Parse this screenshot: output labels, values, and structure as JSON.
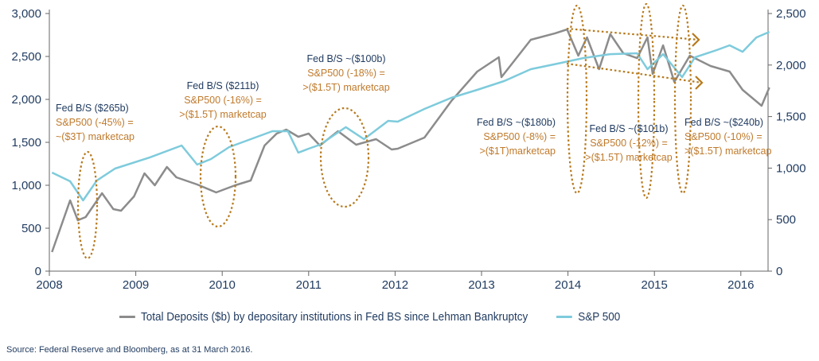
{
  "chart_data": {
    "type": "line",
    "title": "",
    "xlabel": "",
    "ylabel": "",
    "xlim": [
      2008,
      2016.35
    ],
    "x_ticks": [
      "2008",
      "2009",
      "2010",
      "2011",
      "2012",
      "2013",
      "2014",
      "2015",
      "2016"
    ],
    "ylim_left": [
      0,
      3000
    ],
    "y_ticks_left": [
      "0",
      "500",
      "1,000",
      "1,500",
      "2,000",
      "2,500",
      "3,000"
    ],
    "ylim_right": [
      0,
      2500
    ],
    "y_ticks_right": [
      "0",
      "500",
      "1,000",
      "1,500",
      "2,000",
      "2,500"
    ],
    "grid": false,
    "legend_position": "bottom",
    "series": [
      {
        "name": "Total Deposits ($b) by depositary institutions in Fed BS since Lehman Bankruptcy",
        "axis": "left",
        "color": "#8c8c8c",
        "x": [
          2008.03,
          2008.24,
          2008.33,
          2008.42,
          2008.61,
          2008.74,
          2008.83,
          2008.98,
          2009.1,
          2009.22,
          2009.36,
          2009.47,
          2009.71,
          2009.93,
          2010.15,
          2010.33,
          2010.49,
          2010.63,
          2010.74,
          2010.88,
          2011.0,
          2011.13,
          2011.34,
          2011.55,
          2011.78,
          2011.96,
          2012.03,
          2012.34,
          2012.65,
          2012.95,
          2013.2,
          2013.23,
          2013.57,
          2013.85,
          2013.99,
          2014.12,
          2014.22,
          2014.36,
          2014.49,
          2014.64,
          2014.8,
          2014.92,
          2014.98,
          2015.1,
          2015.23,
          2015.41,
          2015.65,
          2015.87,
          2016.02,
          2016.24,
          2016.33
        ],
        "values": [
          222,
          824,
          593,
          630,
          907,
          722,
          704,
          870,
          1139,
          1000,
          1213,
          1093,
          1009,
          917,
          1000,
          1056,
          1463,
          1602,
          1648,
          1565,
          1602,
          1463,
          1630,
          1472,
          1537,
          1417,
          1426,
          1556,
          1981,
          2324,
          2491,
          2259,
          2694,
          2769,
          2815,
          2509,
          2722,
          2352,
          2759,
          2537,
          2481,
          2722,
          2296,
          2630,
          2204,
          2509,
          2389,
          2324,
          2111,
          1926,
          2139
        ]
      },
      {
        "name": "S&P 500",
        "axis": "right",
        "color": "#7ecbdc",
        "x": [
          2008.03,
          2008.24,
          2008.39,
          2008.55,
          2008.76,
          2009.16,
          2009.53,
          2009.71,
          2009.87,
          2010.08,
          2010.58,
          2010.76,
          2010.88,
          2011.0,
          2011.13,
          2011.43,
          2011.64,
          2011.92,
          2012.03,
          2012.34,
          2012.65,
          2012.95,
          2013.26,
          2013.57,
          2013.88,
          2014.18,
          2014.49,
          2014.8,
          2014.92,
          2015.1,
          2015.32,
          2015.47,
          2015.72,
          2015.87,
          2016.02,
          2016.18,
          2016.33
        ],
        "values": [
          957,
          872,
          687,
          880,
          995,
          1103,
          1219,
          1034,
          1088,
          1204,
          1358,
          1358,
          1150,
          1188,
          1227,
          1397,
          1281,
          1458,
          1451,
          1574,
          1682,
          1759,
          1844,
          1960,
          2014,
          2068,
          2106,
          2114,
          1960,
          2106,
          1883,
          2075,
          2145,
          2191,
          2129,
          2268,
          2322
        ]
      }
    ],
    "annotations": [
      {
        "line1": "Fed B/S ($265b)",
        "line2": "S&P500 (-45%) =",
        "line3": "~($3T) marketcap"
      },
      {
        "line1": "Fed B/S ($211b)",
        "line2": "S&P500 (-16%) =",
        "line3": ">($1.5T) marketcap"
      },
      {
        "line1": "Fed B/S ~($100b)",
        "line2": "S&P500 (-18%) =",
        "line3": ">($1.5T) marketcap"
      },
      {
        "line1": "Fed B/S ~($180b)",
        "line2": "S&P500 (-8%) =",
        "line3": ">($1T)marketcap"
      },
      {
        "line1": "Fed B/S ~($101b)",
        "line2": "S&P500 (-12%) =",
        "line3": ">($1.5T) marketcap"
      },
      {
        "line1": "Fed B/S ~($240b)",
        "line2": "S&P500 (-10%) =",
        "line3": ">($1.5T) marketcap"
      }
    ],
    "annotation_colors": {
      "fed": "#1f3a5f",
      "sp": "#c07a2c",
      "ellipse": "#b77a1e"
    }
  },
  "source": "Source: Federal Reserve and Bloomberg, as at 31 March 2016."
}
